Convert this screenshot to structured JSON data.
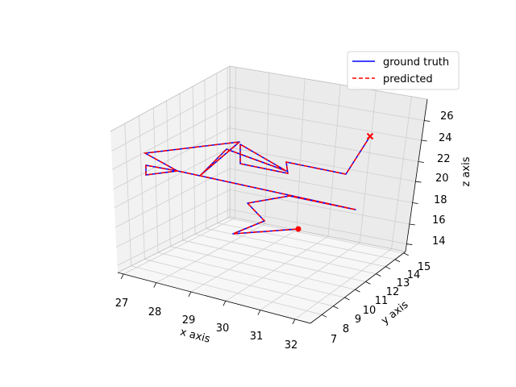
{
  "chart_data": {
    "type": "line3d",
    "xlabel": "x axis",
    "ylabel": "y axis",
    "zlabel": "z axis",
    "xticks": [
      "27",
      "28",
      "29",
      "30",
      "31",
      "32"
    ],
    "yticks": [
      "7",
      "8",
      "9",
      "10",
      "11",
      "12",
      "13",
      "14",
      "15"
    ],
    "zticks": [
      "14",
      "16",
      "18",
      "20",
      "22",
      "24",
      "26"
    ],
    "grid": true,
    "legend_placement": "top-right",
    "series": [
      {
        "name": "ground truth",
        "color": "#0000ff",
        "style": "solid",
        "points": [
          [
            459,
            169
          ],
          [
            429,
            216
          ],
          [
            355,
            201
          ],
          [
            357,
            215
          ],
          [
            298,
            203
          ],
          [
            298,
            179
          ],
          [
            355,
            212
          ],
          [
            281,
            185
          ],
          [
            248,
            218
          ],
          [
            297,
            176
          ],
          [
            180,
            190
          ],
          [
            220,
            212
          ],
          [
            181,
            217
          ],
          [
            181,
            205
          ],
          [
            220,
            212
          ],
          [
            248,
            218
          ],
          [
            441,
            260
          ],
          [
            378,
            247
          ],
          [
            359,
            243
          ],
          [
            307,
            252
          ],
          [
            328,
            274
          ],
          [
            289,
            290
          ],
          [
            370,
            284
          ]
        ]
      },
      {
        "name": "predicted",
        "color": "#ff0000",
        "style": "dashed",
        "points": [
          [
            459,
            169
          ],
          [
            429,
            216
          ],
          [
            355,
            201
          ],
          [
            357,
            215
          ],
          [
            298,
            203
          ],
          [
            298,
            179
          ],
          [
            355,
            212
          ],
          [
            281,
            185
          ],
          [
            248,
            218
          ],
          [
            297,
            176
          ],
          [
            180,
            190
          ],
          [
            220,
            212
          ],
          [
            181,
            217
          ],
          [
            181,
            205
          ],
          [
            220,
            212
          ],
          [
            248,
            218
          ],
          [
            441,
            260
          ],
          [
            378,
            247
          ],
          [
            359,
            243
          ],
          [
            307,
            252
          ],
          [
            328,
            274
          ],
          [
            289,
            290
          ],
          [
            370,
            284
          ]
        ],
        "start_marker": "x",
        "end_marker": "dot"
      }
    ]
  }
}
